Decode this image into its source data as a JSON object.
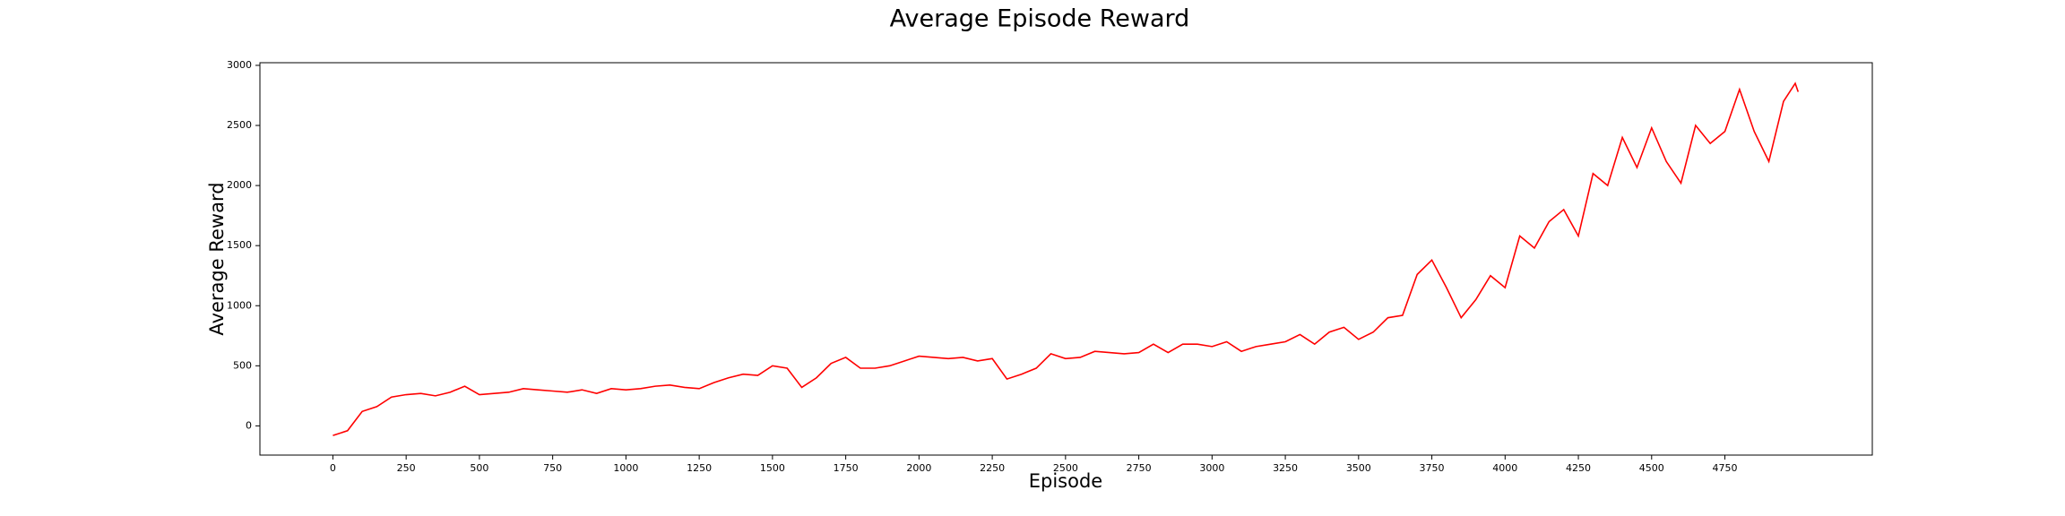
{
  "chart_data": {
    "type": "line",
    "title": "Average Episode Reward",
    "xlabel": "Episode",
    "ylabel": "Average Reward",
    "x": [
      0,
      50,
      100,
      150,
      200,
      250,
      300,
      350,
      400,
      450,
      500,
      550,
      600,
      650,
      700,
      750,
      800,
      850,
      900,
      950,
      1000,
      1050,
      1100,
      1150,
      1200,
      1250,
      1300,
      1350,
      1400,
      1450,
      1500,
      1550,
      1600,
      1650,
      1700,
      1750,
      1800,
      1850,
      1900,
      1950,
      2000,
      2050,
      2100,
      2150,
      2200,
      2250,
      2300,
      2350,
      2400,
      2450,
      2500,
      2550,
      2600,
      2650,
      2700,
      2750,
      2800,
      2850,
      2900,
      2950,
      3000,
      3050,
      3100,
      3150,
      3200,
      3250,
      3300,
      3350,
      3400,
      3450,
      3500,
      3550,
      3600,
      3650,
      3700,
      3750,
      3800,
      3850,
      3900,
      3950,
      4000,
      4050,
      4100,
      4150,
      4200,
      4250,
      4300,
      4350,
      4400,
      4450,
      4500,
      4550,
      4600,
      4650,
      4700,
      4750,
      4800,
      4850,
      4900,
      4950,
      4990,
      5000
    ],
    "series": [
      {
        "name": "Average Reward",
        "color": "#ff0000",
        "values": [
          -80,
          -40,
          120,
          160,
          240,
          260,
          270,
          250,
          280,
          330,
          260,
          270,
          280,
          310,
          300,
          290,
          280,
          300,
          270,
          310,
          300,
          310,
          330,
          340,
          320,
          310,
          360,
          400,
          430,
          420,
          500,
          480,
          320,
          400,
          520,
          570,
          480,
          480,
          500,
          540,
          580,
          570,
          560,
          570,
          540,
          560,
          390,
          430,
          480,
          600,
          560,
          570,
          620,
          610,
          600,
          610,
          680,
          610,
          680,
          680,
          660,
          700,
          620,
          660,
          680,
          700,
          760,
          680,
          780,
          820,
          720,
          780,
          900,
          920,
          1260,
          1380,
          1150,
          900,
          1050,
          1250,
          1150,
          1580,
          1480,
          1700,
          1800,
          1580,
          2100,
          2000,
          2400,
          2150,
          2480,
          2200,
          2020,
          2500,
          2350,
          2450,
          2800,
          2450,
          2200,
          2700,
          2850,
          2780
        ]
      }
    ],
    "xlim": [
      -249,
      5253
    ],
    "ylim": [
      -243,
      3022
    ],
    "xticks": [
      0,
      250,
      500,
      750,
      1000,
      1250,
      1500,
      1750,
      2000,
      2250,
      2500,
      2750,
      3000,
      3250,
      3500,
      3750,
      4000,
      4250,
      4500,
      4750
    ],
    "yticks": [
      0,
      500,
      1000,
      1500,
      2000,
      2500,
      3000
    ]
  }
}
